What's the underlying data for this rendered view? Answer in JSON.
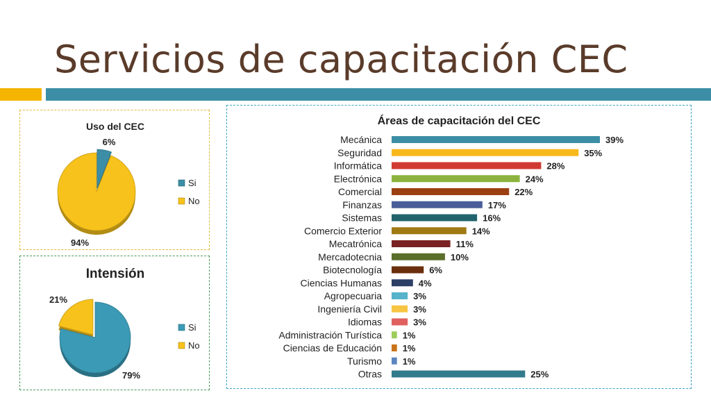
{
  "slide": {
    "title": "Servicios de capacitación CEC",
    "colors": {
      "title": "#5a3b2a",
      "accent_orange": "#f4b400",
      "accent_teal": "#3b8ea5"
    }
  },
  "chart_data": [
    {
      "type": "pie",
      "title": "Uso del CEC",
      "legend_position": "right",
      "categories": [
        "Si",
        "No"
      ],
      "values": [
        6,
        94
      ],
      "labels": [
        "6%",
        "94%"
      ],
      "colors": [
        "#3b8ea5",
        "#f7c21b"
      ]
    },
    {
      "type": "pie",
      "title": "Intensión",
      "legend_position": "right",
      "categories": [
        "Si",
        "No"
      ],
      "values": [
        79,
        21
      ],
      "labels": [
        "79%",
        "21%"
      ],
      "colors": [
        "#3b9ab5",
        "#f7c21b"
      ]
    },
    {
      "type": "bar",
      "orientation": "horizontal",
      "title": "Áreas de capacitación del CEC",
      "grid": false,
      "categories": [
        "Mecánica",
        "Seguridad",
        "Informática",
        "Electrónica",
        "Comercial",
        "Finanzas",
        "Sistemas",
        "Comercio  Exterior",
        "Mecatrónica",
        "Mercadotecnia",
        "Biotecnología",
        "Ciencias Humanas",
        "Agropecuaria",
        "Ingeniería Civil",
        "Idiomas",
        "Administración Turística",
        "Ciencias de Educación",
        "Turismo",
        "Otras"
      ],
      "values": [
        39,
        35,
        28,
        24,
        22,
        17,
        16,
        14,
        11,
        10,
        6,
        4,
        3,
        3,
        3,
        1,
        1,
        1,
        25
      ],
      "labels": [
        "39%",
        "35%",
        "28%",
        "24%",
        "22%",
        "17%",
        "16%",
        "14%",
        "11%",
        "10%",
        "6%",
        "4%",
        "3%",
        "3%",
        "3%",
        "1%",
        "1%",
        "1%",
        "25%"
      ],
      "colors": [
        "#3b8ea5",
        "#f7b81c",
        "#d13a32",
        "#8cb33e",
        "#9c3f12",
        "#4a5f99",
        "#22646d",
        "#a07a14",
        "#7a2222",
        "#5b6e2b",
        "#6b2f0d",
        "#2c3f66",
        "#56b3c9",
        "#f7c543",
        "#e06060",
        "#9ccc5a",
        "#c9741b",
        "#5a86bf",
        "#327b8c"
      ]
    }
  ]
}
